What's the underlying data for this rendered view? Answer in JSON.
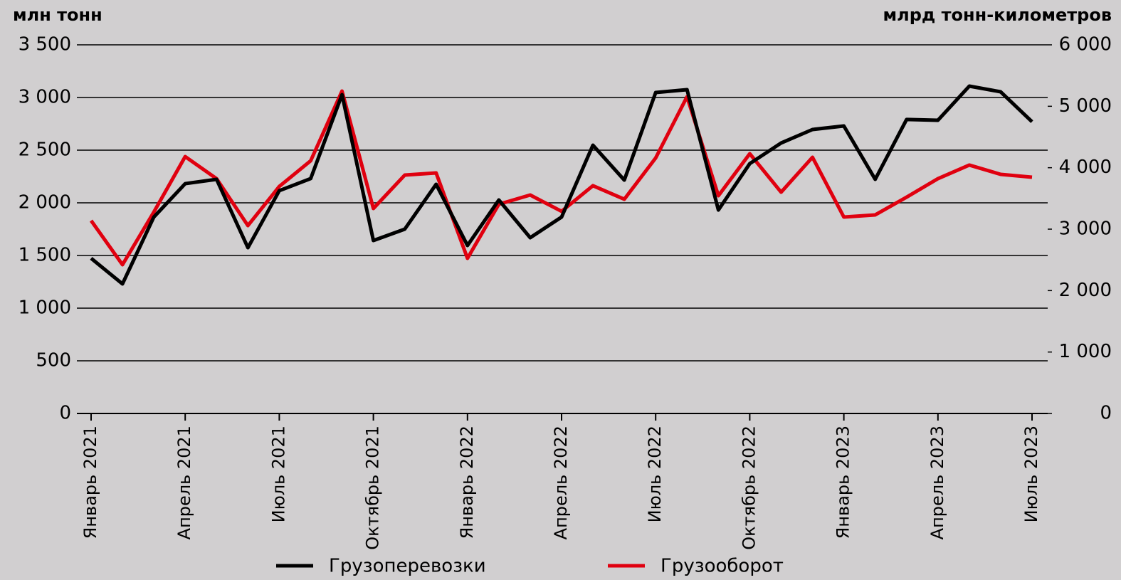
{
  "chart_data": {
    "type": "line",
    "y_label": "млн тонн",
    "y2_label": "млрд тонн-километров",
    "categories": [
      "Январь 2021",
      null,
      null,
      "Апрель 2021",
      null,
      null,
      "Июль 2021",
      null,
      null,
      "Октябрь 2021",
      null,
      null,
      "Январь 2022",
      null,
      null,
      "Апрель 2022",
      null,
      null,
      "Июль 2022",
      null,
      null,
      "Октябрь 2022",
      null,
      null,
      "Январь 2023",
      null,
      null,
      "Апрель 2023",
      null,
      null,
      "Июль 2023"
    ],
    "series": [
      {
        "name": "Грузоперевозки",
        "color": "#000000",
        "axis": "y",
        "values": [
          1473,
          1230,
          1865,
          2182,
          2223,
          1574,
          2115,
          2230,
          3027,
          1642,
          1750,
          2176,
          1595,
          2027,
          1669,
          1865,
          2547,
          2216,
          3047,
          3074,
          1932,
          2372,
          2568,
          2696,
          2730,
          2223,
          2791,
          2784,
          3108,
          3054,
          2770
        ]
      },
      {
        "name": "Грузооборот",
        "color": "#e0000f",
        "axis": "y2",
        "values": [
          3139,
          2421,
          3278,
          4181,
          3822,
          3058,
          3695,
          4112,
          5247,
          3336,
          3880,
          3915,
          2525,
          3405,
          3556,
          3290,
          3707,
          3487,
          4158,
          5155,
          3544,
          4228,
          3602,
          4170,
          3197,
          3232,
          3521,
          3822,
          4043,
          3892,
          3846
        ]
      }
    ],
    "ylim": [
      0,
      3500
    ],
    "yticks": [
      0,
      500,
      {
        "value": 1000,
        "label": "1 000"
      },
      {
        "value": 1500,
        "label": "1 500"
      },
      {
        "value": 2000,
        "label": "2 000"
      },
      {
        "value": 2500,
        "label": "2 500"
      },
      {
        "value": 3000,
        "label": "3 000"
      },
      {
        "value": 3500,
        "label": "3 500"
      }
    ],
    "y2lim": [
      0,
      6000
    ],
    "y2ticks": [
      0,
      {
        "value": 1000,
        "label": "1 000"
      },
      {
        "value": 2000,
        "label": "2 000"
      },
      {
        "value": 3000,
        "label": "3 000"
      },
      {
        "value": 4000,
        "label": "4 000"
      },
      {
        "value": 5000,
        "label": "5 000"
      },
      {
        "value": 6000,
        "label": "6 000"
      }
    ],
    "grid": true,
    "legend": "bottom"
  }
}
